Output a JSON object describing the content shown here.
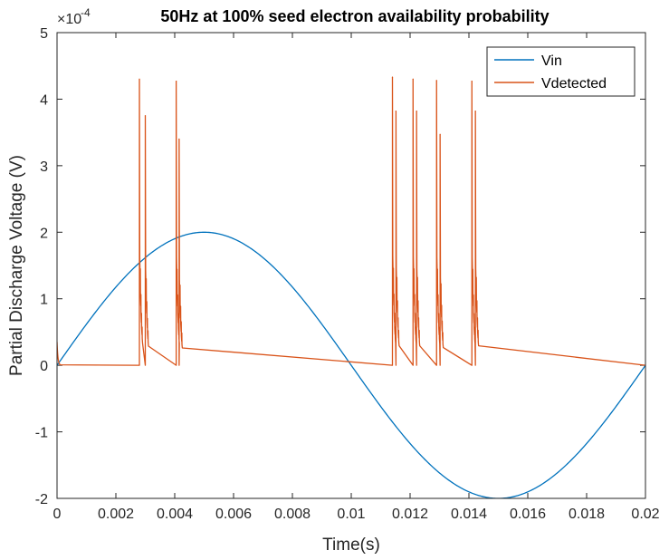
{
  "chart_data": {
    "type": "line",
    "title": "50Hz at 100% seed electron availability probability",
    "xlabel": "Time(s)",
    "ylabel": "Partial Discharge Voltage (V)",
    "exponent_label": "×10",
    "exponent_value": "-4",
    "xlim": [
      0,
      0.02
    ],
    "ylim": [
      -2,
      5
    ],
    "xticks": [
      0,
      0.002,
      0.004,
      0.006,
      0.008,
      0.01,
      0.012,
      0.014,
      0.016,
      0.018,
      0.02
    ],
    "xtick_labels": [
      "0",
      "0.002",
      "0.004",
      "0.006",
      "0.008",
      "0.01",
      "0.012",
      "0.014",
      "0.016",
      "0.018",
      "0.02"
    ],
    "yticks": [
      -2,
      -1,
      0,
      1,
      2,
      3,
      4,
      5
    ],
    "ytick_labels": [
      "-2",
      "-1",
      "0",
      "1",
      "2",
      "3",
      "4",
      "5"
    ],
    "legend_position": "top-right",
    "series": [
      {
        "name": "Vin",
        "color": "#0072BD",
        "shape": "sine",
        "amplitude": 2.0,
        "frequency_hz": 50
      },
      {
        "name": "Vdetected",
        "color": "#D95319",
        "shape": "pulse-train",
        "initial_value": 0.35,
        "pulses": [
          {
            "t": 0.0028,
            "peak": 4.3
          },
          {
            "t": 0.003,
            "peak": 3.75
          },
          {
            "t": 0.00405,
            "peak": 4.27
          },
          {
            "t": 0.00415,
            "peak": 3.4
          },
          {
            "t": 0.0114,
            "peak": 4.33
          },
          {
            "t": 0.01152,
            "peak": 3.82
          },
          {
            "t": 0.0121,
            "peak": 4.3
          },
          {
            "t": 0.01222,
            "peak": 3.82
          },
          {
            "t": 0.0129,
            "peak": 4.28
          },
          {
            "t": 0.01302,
            "peak": 3.47
          },
          {
            "t": 0.0141,
            "peak": 4.27
          },
          {
            "t": 0.01422,
            "peak": 3.82
          }
        ]
      }
    ]
  }
}
